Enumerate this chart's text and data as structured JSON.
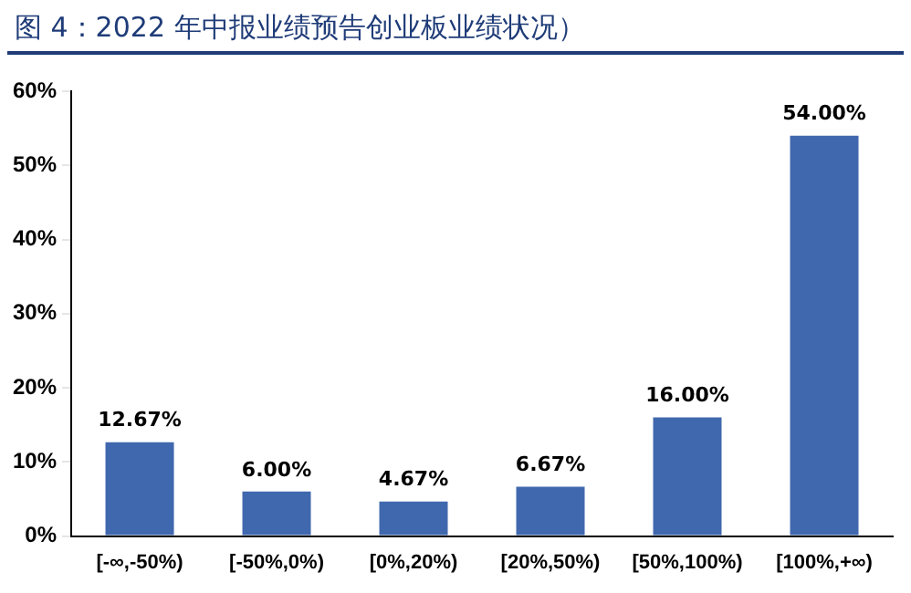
{
  "chart_data": {
    "type": "bar",
    "title": "图 4：2022 年中报业绩预告创业板业绩状况）",
    "categories": [
      "[-∞,-50%)",
      "[-50%,0%)",
      "[0%,20%)",
      "[20%,50%)",
      "[50%,100%)",
      "[100%,+∞)"
    ],
    "values": [
      12.67,
      6.0,
      4.67,
      6.67,
      16.0,
      54.0
    ],
    "value_labels": [
      "12.67%",
      "6.00%",
      "4.67%",
      "6.67%",
      "16.00%",
      "54.00%"
    ],
    "color": "#4068ae",
    "ylim": [
      0,
      60
    ],
    "yticks": [
      {
        "value": 0,
        "label": "0%"
      },
      {
        "value": 10,
        "label": "10%"
      },
      {
        "value": 20,
        "label": "20%"
      },
      {
        "value": 30,
        "label": "30%"
      },
      {
        "value": 40,
        "label": "40%"
      },
      {
        "value": 50,
        "label": "50%"
      },
      {
        "value": 60,
        "label": "60%"
      }
    ],
    "grid": false,
    "legend": false
  }
}
